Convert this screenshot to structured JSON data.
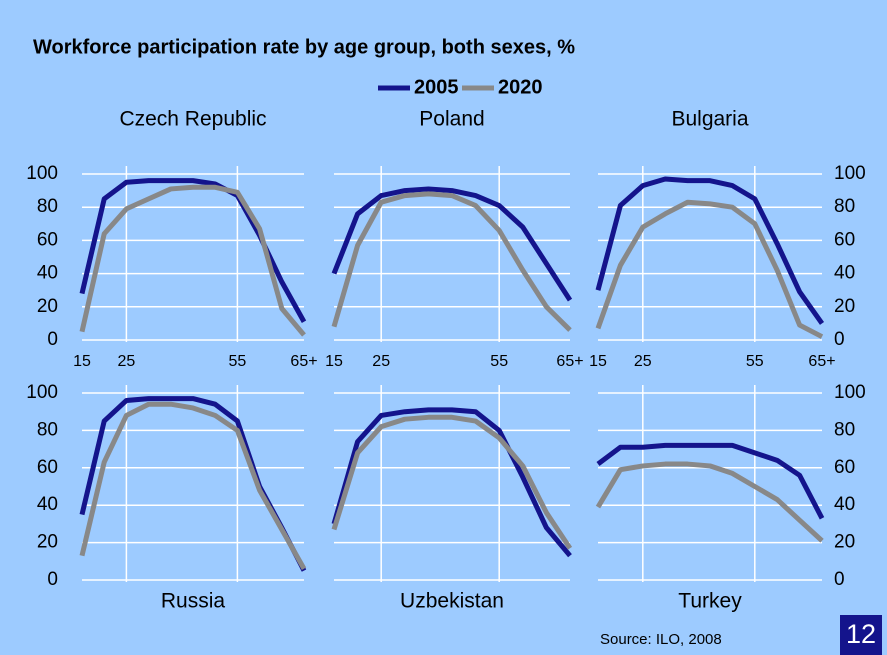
{
  "title": "Workforce participation rate by age group, both sexes, %",
  "source": "Source: ILO, 2008",
  "page_number": "12",
  "chart_data": [
    {
      "type": "line",
      "title": "Czech Republic",
      "ytick_side": "left",
      "categories": [
        "15",
        null,
        "25",
        null,
        null,
        null,
        null,
        "55",
        null,
        null,
        "65+"
      ],
      "ylim": [
        0,
        100
      ],
      "yticks": [
        0,
        20,
        40,
        60,
        80,
        100
      ],
      "grid": true,
      "series": [
        {
          "name": "2005",
          "color": "#14148c",
          "values": [
            28,
            85,
            95,
            96,
            96,
            96,
            94,
            87,
            63,
            35,
            11
          ]
        },
        {
          "name": "2020",
          "color": "#888888",
          "values": [
            5,
            64,
            79,
            85,
            91,
            92,
            92,
            89,
            67,
            19,
            3
          ]
        }
      ]
    },
    {
      "type": "line",
      "title": "Poland",
      "ytick_side": "none",
      "categories": [
        "15",
        null,
        "25",
        null,
        null,
        null,
        null,
        "55",
        null,
        null,
        "65+"
      ],
      "ylim": [
        0,
        100
      ],
      "yticks": [
        0,
        20,
        40,
        60,
        80,
        100
      ],
      "grid": true,
      "series": [
        {
          "color": "#14148c",
          "values": [
            40,
            76,
            87,
            90,
            91,
            90,
            87,
            81,
            68,
            46,
            24
          ]
        },
        {
          "color": "#888888",
          "values": [
            8,
            57,
            83,
            87,
            88,
            87,
            81,
            66,
            42,
            20,
            6
          ]
        }
      ]
    },
    {
      "type": "line",
      "title": "Bulgaria",
      "ytick_side": "right",
      "categories": [
        "15",
        null,
        "25",
        null,
        null,
        null,
        null,
        "55",
        null,
        null,
        "65+"
      ],
      "ylim": [
        0,
        100
      ],
      "yticks": [
        0,
        20,
        40,
        60,
        80,
        100
      ],
      "grid": true,
      "series": [
        {
          "color": "#14148c",
          "values": [
            30,
            81,
            93,
            97,
            96,
            96,
            93,
            85,
            58,
            29,
            10
          ]
        },
        {
          "color": "#888888",
          "values": [
            7,
            45,
            68,
            76,
            83,
            82,
            80,
            70,
            42,
            9,
            2
          ]
        }
      ]
    },
    {
      "type": "line",
      "title": "Russia",
      "ytick_side": "left",
      "ylim": [
        0,
        100
      ],
      "yticks": [
        0,
        20,
        40,
        60,
        80,
        100
      ],
      "grid": true,
      "series": [
        {
          "color": "#14148c",
          "values": [
            35,
            85,
            96,
            97,
            97,
            97,
            94,
            85,
            50,
            28,
            5
          ]
        },
        {
          "color": "#888888",
          "values": [
            13,
            63,
            88,
            94,
            94,
            92,
            88,
            80,
            48,
            27,
            6
          ]
        }
      ]
    },
    {
      "type": "line",
      "title": "Uzbekistan",
      "ytick_side": "none",
      "ylim": [
        0,
        100
      ],
      "yticks": [
        0,
        20,
        40,
        60,
        80,
        100
      ],
      "grid": true,
      "series": [
        {
          "color": "#14148c",
          "values": [
            30,
            74,
            88,
            90,
            91,
            91,
            90,
            80,
            55,
            28,
            13
          ]
        },
        {
          "color": "#888888",
          "values": [
            27,
            68,
            82,
            86,
            87,
            87,
            85,
            76,
            61,
            36,
            17
          ]
        }
      ]
    },
    {
      "type": "line",
      "title": "Turkey",
      "ytick_side": "right",
      "ylim": [
        0,
        100
      ],
      "yticks": [
        0,
        20,
        40,
        60,
        80,
        100
      ],
      "grid": true,
      "series": [
        {
          "color": "#14148c",
          "values": [
            62,
            71,
            71,
            72,
            72,
            72,
            72,
            68,
            64,
            56,
            33
          ]
        },
        {
          "color": "#888888",
          "values": [
            39,
            59,
            61,
            62,
            62,
            61,
            57,
            50,
            43,
            32,
            21
          ]
        }
      ]
    }
  ]
}
